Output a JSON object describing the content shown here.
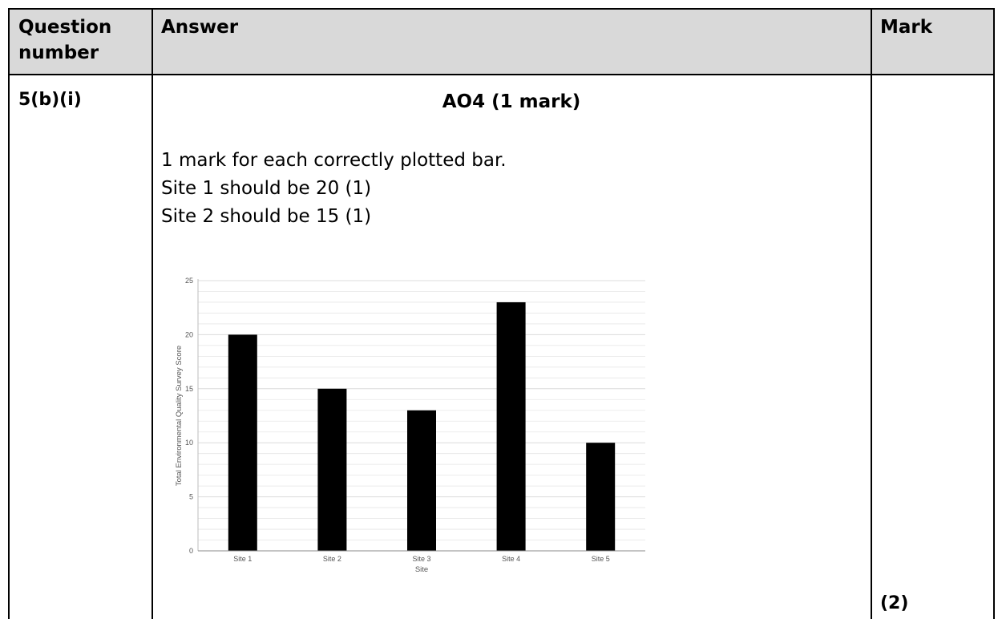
{
  "table": {
    "headers": {
      "question_number": "Question number",
      "answer": "Answer",
      "mark": "Mark"
    },
    "row": {
      "question_number": "5(b)(i)",
      "answer": {
        "assessment_objective": "AO4 (1 mark)",
        "lines": [
          "1 mark for each correctly plotted bar.",
          "Site 1 should be 20 (1)",
          "Site 2 should be 15 (1)"
        ]
      },
      "mark": "(2)"
    }
  },
  "chart_data": {
    "type": "bar",
    "categories": [
      "Site 1",
      "Site 2",
      "Site 3",
      "Site 4",
      "Site 5"
    ],
    "values": [
      20,
      15,
      13,
      23,
      10
    ],
    "xlabel": "Site",
    "ylabel": "Total Environmental Quality Survey Score",
    "ylim": [
      0,
      25
    ],
    "yticks": [
      0,
      5,
      10,
      15,
      20,
      25
    ],
    "grid": true,
    "bar_color": "#000000",
    "gridline_color": "#e6e6e6"
  }
}
